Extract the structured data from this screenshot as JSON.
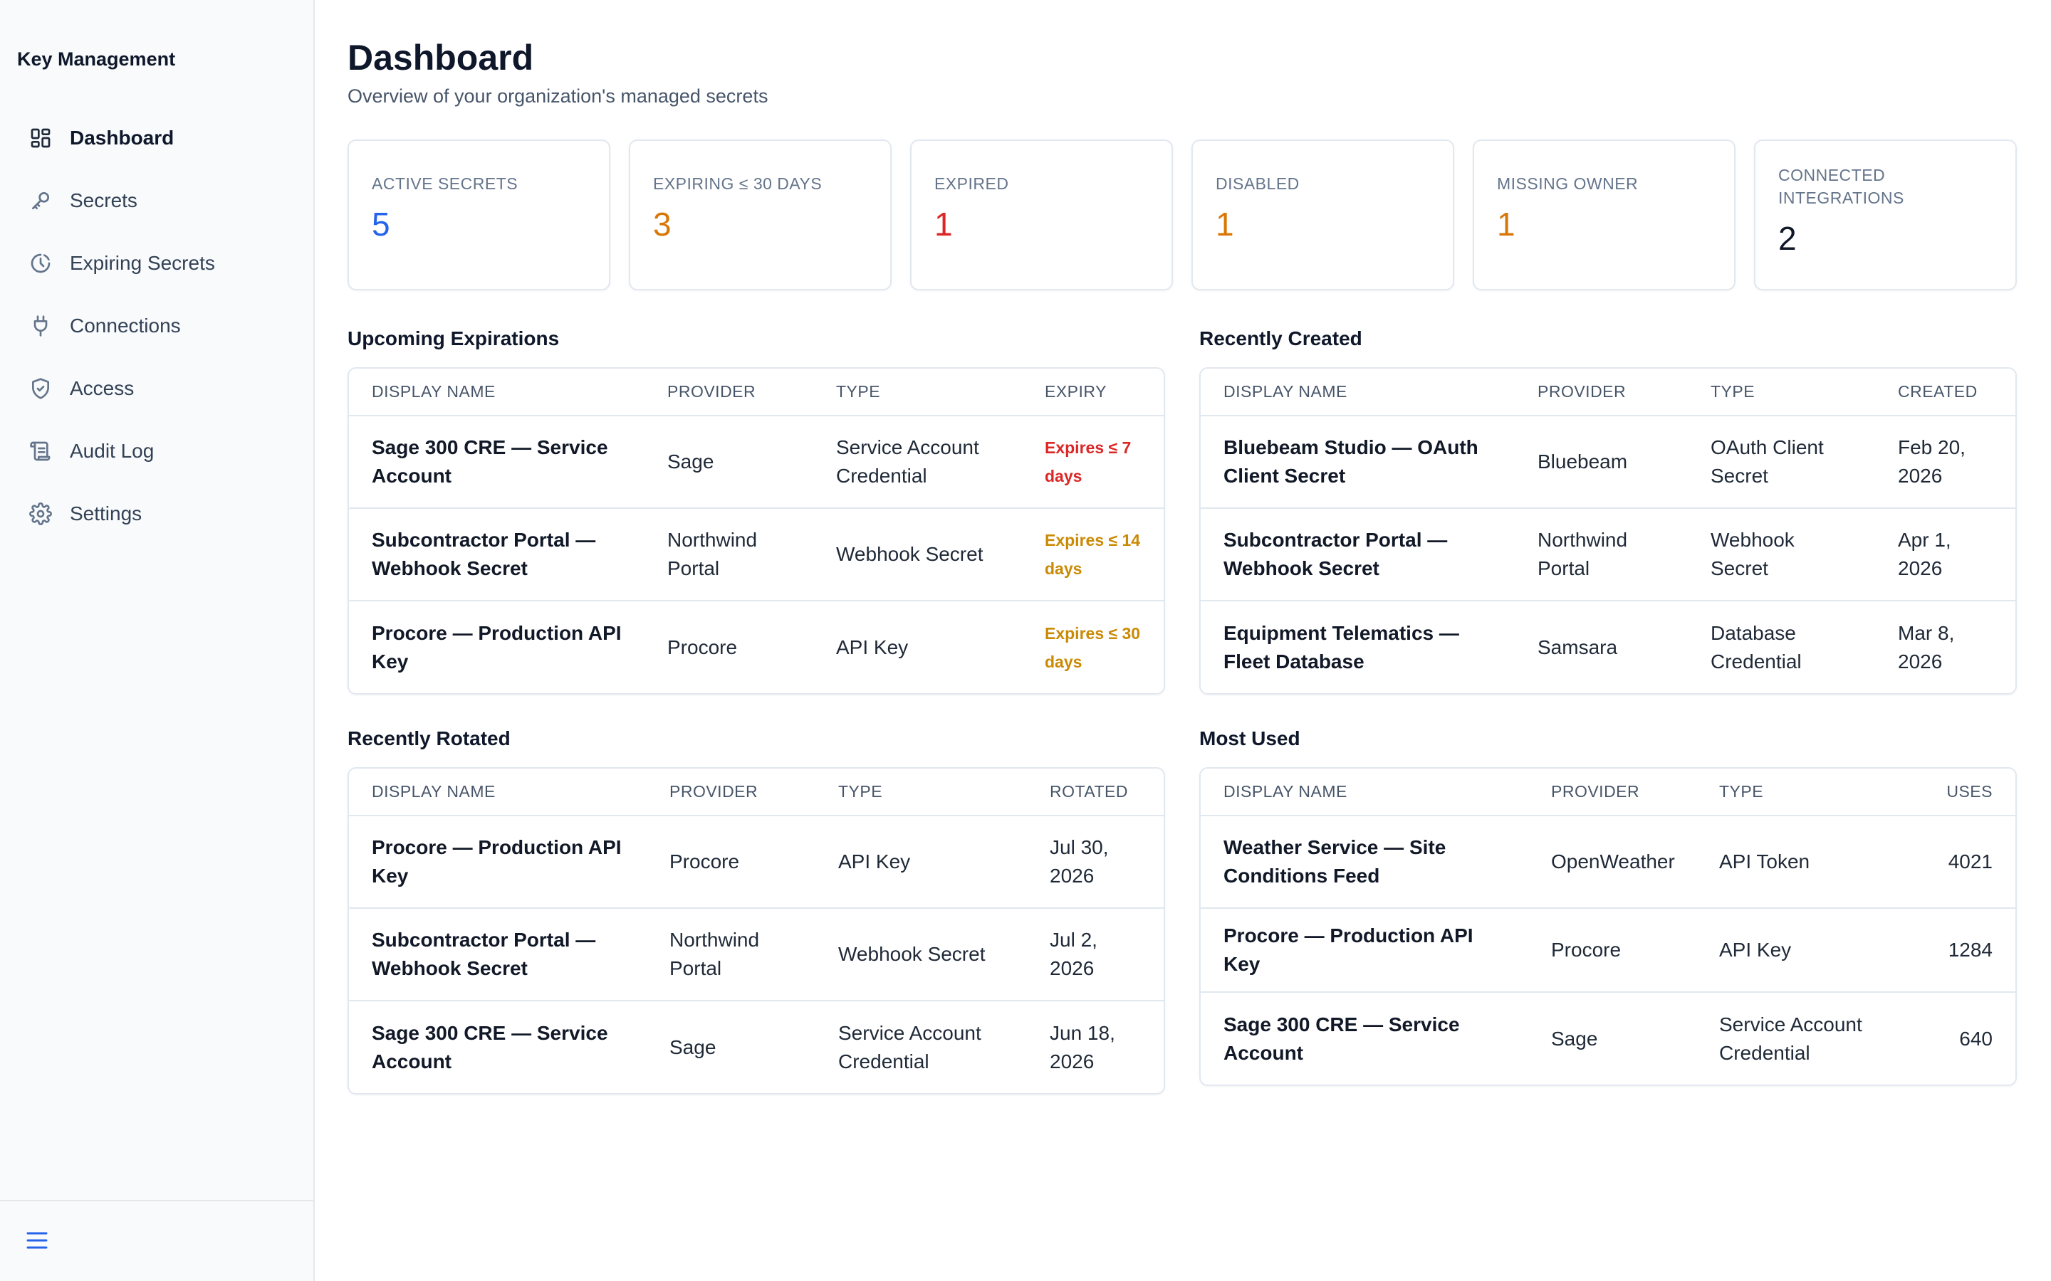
{
  "app": {
    "title": "Key Management"
  },
  "sidebar": {
    "items": [
      {
        "label": "Dashboard",
        "icon": "dashboard-icon",
        "active": true
      },
      {
        "label": "Secrets",
        "icon": "key-icon"
      },
      {
        "label": "Expiring Secrets",
        "icon": "clock-icon"
      },
      {
        "label": "Connections",
        "icon": "plug-icon"
      },
      {
        "label": "Access",
        "icon": "shield-icon"
      },
      {
        "label": "Audit Log",
        "icon": "scroll-icon"
      },
      {
        "label": "Settings",
        "icon": "gear-icon"
      }
    ],
    "footer_icon": "menu-icon"
  },
  "header": {
    "title": "Dashboard",
    "subtitle": "Overview of your organization's managed secrets"
  },
  "stats": [
    {
      "label": "Active Secrets",
      "value": "5",
      "color": "#2563eb"
    },
    {
      "label": "Expiring ≤ 30 days",
      "value": "3",
      "color": "#d97706"
    },
    {
      "label": "Expired",
      "value": "1",
      "color": "#dc2626"
    },
    {
      "label": "Disabled",
      "value": "1",
      "color": "#d97706"
    },
    {
      "label": "Missing Owner",
      "value": "1",
      "color": "#d97706"
    },
    {
      "label": "Connected Integrations",
      "value": "2",
      "color": "#111827"
    }
  ],
  "upcoming": {
    "title": "Upcoming Expirations",
    "columns": [
      "Display Name",
      "Provider",
      "Type",
      "Expiry"
    ],
    "rows": [
      {
        "name": "Sage 300 CRE — Service Account",
        "provider": "Sage",
        "type": "Service Account Credential",
        "expiry": "Expires ≤ 7 days",
        "color": "#dc2626"
      },
      {
        "name": "Subcontractor Portal — Webhook Secret",
        "provider": "Northwind Portal",
        "type": "Webhook Secret",
        "expiry": "Expires ≤ 14 days",
        "color": "#ca8a04"
      },
      {
        "name": "Procore — Production API Key",
        "provider": "Procore",
        "type": "API Key",
        "expiry": "Expires ≤ 30 days",
        "color": "#ca8a04"
      }
    ]
  },
  "created": {
    "title": "Recently Created",
    "columns": [
      "Display Name",
      "Provider",
      "Type",
      "Created"
    ],
    "rows": [
      {
        "name": "Bluebeam Studio — OAuth Client Secret",
        "provider": "Bluebeam",
        "type": "OAuth Client Secret",
        "date": "Feb 20, 2026"
      },
      {
        "name": "Subcontractor Portal — Webhook Secret",
        "provider": "Northwind Portal",
        "type": "Webhook Secret",
        "date": "Apr 1, 2026"
      },
      {
        "name": "Equipment Telematics — Fleet Database",
        "provider": "Samsara",
        "type": "Database Credential",
        "date": "Mar 8, 2026"
      }
    ]
  },
  "rotated": {
    "title": "Recently Rotated",
    "columns": [
      "Display Name",
      "Provider",
      "Type",
      "Rotated"
    ],
    "rows": [
      {
        "name": "Procore — Production API Key",
        "provider": "Procore",
        "type": "API Key",
        "date": "Jul 30, 2026"
      },
      {
        "name": "Subcontractor Portal — Webhook Secret",
        "provider": "Northwind Portal",
        "type": "Webhook Secret",
        "date": "Jul 2, 2026"
      },
      {
        "name": "Sage 300 CRE — Service Account",
        "provider": "Sage",
        "type": "Service Account Credential",
        "date": "Jun 18, 2026"
      }
    ]
  },
  "most_used": {
    "title": "Most Used",
    "columns": [
      "Display Name",
      "Provider",
      "Type",
      "Uses"
    ],
    "rows": [
      {
        "name": "Weather Service — Site Conditions Feed",
        "provider": "OpenWeather",
        "type": "API Token",
        "uses": "4021"
      },
      {
        "name": "Procore — Production API Key",
        "provider": "Procore",
        "type": "API Key",
        "uses": "1284"
      },
      {
        "name": "Sage 300 CRE — Service Account",
        "provider": "Sage",
        "type": "Service Account Credential",
        "uses": "640"
      }
    ]
  }
}
